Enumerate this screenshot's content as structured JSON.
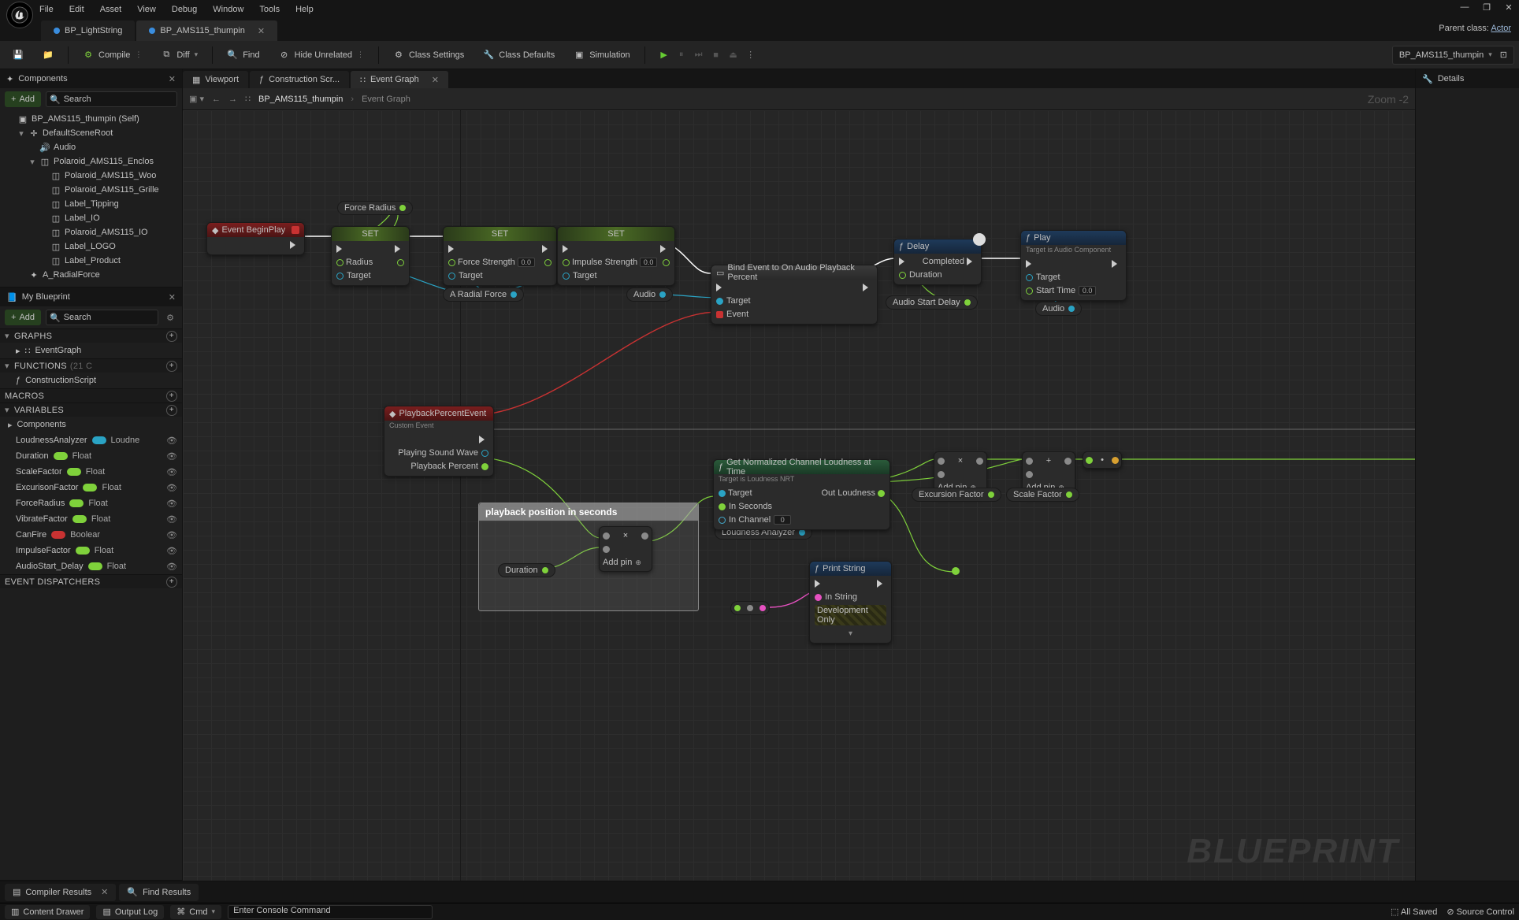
{
  "menu": [
    "File",
    "Edit",
    "Asset",
    "View",
    "Debug",
    "Window",
    "Tools",
    "Help"
  ],
  "parentClass": {
    "label": "Parent class:",
    "value": "Actor"
  },
  "fileTabs": [
    {
      "label": "BP_LightString",
      "color": "#3a8dde",
      "active": false
    },
    {
      "label": "BP_AMS115_thumpin",
      "color": "#3a8dde",
      "active": true
    }
  ],
  "toolbar": {
    "compile": "Compile",
    "diff": "Diff",
    "find": "Find",
    "hide": "Hide Unrelated",
    "classSettings": "Class Settings",
    "classDefaults": "Class Defaults",
    "simulation": "Simulation",
    "breadcrumb": "BP_AMS115_thumpin"
  },
  "panels": {
    "components": "Components",
    "myBlueprint": "My Blueprint",
    "details": "Details",
    "viewport": "Viewport",
    "construction": "Construction Scr...",
    "eventGraph": "Event Graph",
    "add": "Add",
    "searchPlaceholder": "Search"
  },
  "componentsTree": [
    {
      "indent": 0,
      "tw": "",
      "icon": "cube",
      "label": "BP_AMS115_thumpin (Self)"
    },
    {
      "indent": 1,
      "tw": "▾",
      "icon": "axis",
      "label": "DefaultSceneRoot"
    },
    {
      "indent": 2,
      "tw": "",
      "icon": "speaker",
      "label": "Audio"
    },
    {
      "indent": 2,
      "tw": "▾",
      "icon": "mesh",
      "label": "Polaroid_AMS115_Enclos"
    },
    {
      "indent": 3,
      "tw": "",
      "icon": "mesh",
      "label": "Polaroid_AMS115_Woo"
    },
    {
      "indent": 3,
      "tw": "",
      "icon": "mesh",
      "label": "Polaroid_AMS115_Grille"
    },
    {
      "indent": 3,
      "tw": "",
      "icon": "mesh",
      "label": "Label_Tipping"
    },
    {
      "indent": 3,
      "tw": "",
      "icon": "mesh",
      "label": "Label_IO"
    },
    {
      "indent": 3,
      "tw": "",
      "icon": "mesh",
      "label": "Polaroid_AMS115_IO"
    },
    {
      "indent": 3,
      "tw": "",
      "icon": "mesh",
      "label": "Label_LOGO"
    },
    {
      "indent": 3,
      "tw": "",
      "icon": "mesh",
      "label": "Label_Product"
    },
    {
      "indent": 1,
      "tw": "",
      "icon": "force",
      "label": "A_RadialForce"
    }
  ],
  "bp": {
    "graphs": "GRAPHS",
    "funcs": "FUNCTIONS",
    "funcsCount": "(21 C",
    "macros": "MACROS",
    "vars": "VARIABLES",
    "compHeader": "Components",
    "disp": "EVENT DISPATCHERS",
    "eventGraph": "EventGraph",
    "constructionScript": "ConstructionScript"
  },
  "variables": [
    {
      "name": "LoudnessAnalyzer",
      "type": "Loudne",
      "color": "#2aa3c4"
    },
    {
      "name": "Duration",
      "type": "Float",
      "color": "#7fd13b"
    },
    {
      "name": "ScaleFactor",
      "type": "Float",
      "color": "#7fd13b"
    },
    {
      "name": "ExcurisonFactor",
      "type": "Float",
      "color": "#7fd13b"
    },
    {
      "name": "ForceRadius",
      "type": "Float",
      "color": "#7fd13b"
    },
    {
      "name": "VibrateFactor",
      "type": "Float",
      "color": "#7fd13b"
    },
    {
      "name": "CanFire",
      "type": "Boolear",
      "color": "#c83232"
    },
    {
      "name": "ImpulseFactor",
      "type": "Float",
      "color": "#7fd13b"
    },
    {
      "name": "AudioStart_Delay",
      "type": "Float",
      "color": "#7fd13b"
    }
  ],
  "graphCrumb": {
    "a": "BP_AMS115_thumpin",
    "b": "Event Graph",
    "zoom": "Zoom -2"
  },
  "nodes": {
    "beginPlay": "Event BeginPlay",
    "set": "SET",
    "radius": "Radius",
    "target": "Target",
    "forceStrength": "Force Strength",
    "impulseStrength": "Impulse Strength",
    "forceRadius": "Force Radius",
    "aRadialForce": "A Radial Force",
    "audio": "Audio",
    "bindEvent": "Bind Event to On Audio Playback Percent",
    "event": "Event",
    "delay": "Delay",
    "completed": "Completed",
    "duration": "Duration",
    "audioStartDelay": "Audio Start Delay",
    "play": "Play",
    "playSub": "Target is Audio Component",
    "startTime": "Start Time",
    "startTimeVal": "0.0",
    "pbEvent": "PlaybackPercentEvent",
    "customEvent": "Custom Event",
    "playingSoundWave": "Playing Sound Wave",
    "playbackPercent": "Playback Percent",
    "comment": "playback position in seconds",
    "addPin": "Add pin",
    "loudnessAnalyzer": "Loudness Analyzer",
    "getLoudness": "Get Normalized Channel Loudness at Time",
    "getLoudnessSub": "Target is Loudness NRT",
    "inSeconds": "In Seconds",
    "inChannel": "In Channel",
    "inChannelVal": "0",
    "outLoudness": "Out Loudness",
    "printString": "Print String",
    "inString": "In String",
    "devOnly": "Development Only",
    "excursionFactor": "Excursion Factor",
    "scaleFactor": "Scale Factor",
    "numZero": "0.0"
  },
  "watermark": "BLUEPRINT",
  "bottom": {
    "compiler": "Compiler Results",
    "find": "Find Results"
  },
  "status": {
    "drawer": "Content Drawer",
    "output": "Output Log",
    "cmd": "Cmd",
    "cmdPlaceholder": "Enter Console Command",
    "saved": "All Saved",
    "source": "Source Control"
  },
  "colors": {
    "exec": "#ffffff",
    "float": "#7fd13b",
    "object": "#2aa3c4",
    "delegate": "#c83232",
    "string": "#e651c0",
    "wildcard": "#8a8a8a",
    "headerRed": "#7a1e1e",
    "headerGreen": "#3a5a1e",
    "headerBlue": "#1e3a5a",
    "headerGrey": "#3a3a3a"
  }
}
